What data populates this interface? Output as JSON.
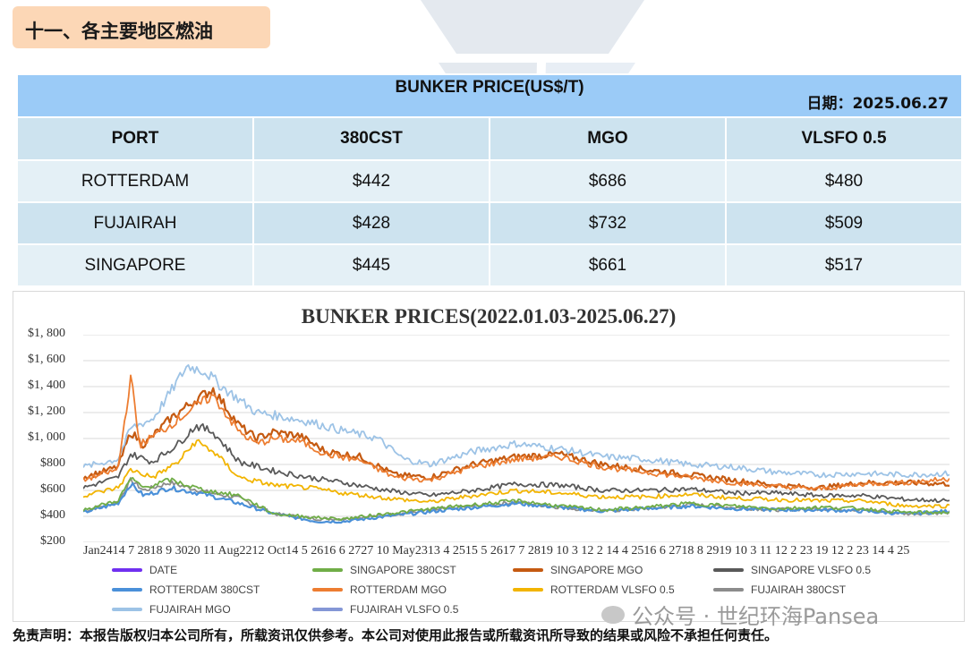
{
  "section": {
    "title": "十一、各主要地区燃油"
  },
  "table": {
    "caption": "BUNKER PRICE(US$/T)",
    "date_label": "日期：2025.06.27",
    "headers": [
      "PORT",
      "380CST",
      "MGO",
      "VLSFO 0.5"
    ],
    "rows": [
      [
        "ROTTERDAM",
        "$442",
        "$686",
        "$480"
      ],
      [
        "FUJAIRAH",
        "$428",
        "$732",
        "$509"
      ],
      [
        "SINGAPORE",
        "$445",
        "$661",
        "$517"
      ]
    ]
  },
  "watermark_text": "pansea",
  "chart_data": {
    "type": "line",
    "title": "BUNKER PRICES(2022.01.03-2025.06.27)",
    "ylim": [
      200,
      1800
    ],
    "yticks": [
      "$1, 800",
      "$1, 600",
      "$1, 400",
      "$1, 200",
      "$1, 000",
      "$800",
      "$600",
      "$400",
      "$200"
    ],
    "ytick_values": [
      1800,
      1600,
      1400,
      1200,
      1000,
      800,
      600,
      400,
      200
    ],
    "xtick_text": "Jan2414 7 2818 9 3020 11 Aug2212 Oct14 5 2616 6 2727 10 May2313 4 2515 5 2617 7 2819 10 3 12 2 14 4 2516 6 2718 8 2919 10 3 11 12 2 23 19 12 2 23 14 4 25",
    "x_range": [
      "2022.01.03",
      "2025.06.27"
    ],
    "grid": true,
    "legend_position": "bottom",
    "series": [
      {
        "name": "DATE",
        "color": "#7030f0",
        "anchors": []
      },
      {
        "name": "SINGAPORE 380CST",
        "color": "#70ad47",
        "anchors": [
          [
            0,
            450
          ],
          [
            0.04,
            520
          ],
          [
            0.055,
            690
          ],
          [
            0.07,
            620
          ],
          [
            0.1,
            680
          ],
          [
            0.14,
            600
          ],
          [
            0.18,
            560
          ],
          [
            0.22,
            420
          ],
          [
            0.27,
            390
          ],
          [
            0.3,
            380
          ],
          [
            0.35,
            420
          ],
          [
            0.42,
            470
          ],
          [
            0.5,
            520
          ],
          [
            0.55,
            480
          ],
          [
            0.6,
            450
          ],
          [
            0.65,
            470
          ],
          [
            0.7,
            500
          ],
          [
            0.75,
            480
          ],
          [
            0.8,
            460
          ],
          [
            0.85,
            470
          ],
          [
            0.9,
            460
          ],
          [
            0.95,
            430
          ],
          [
            1,
            430
          ]
        ]
      },
      {
        "name": "SINGAPORE MGO",
        "color": "#c55a11",
        "anchors": [
          [
            0,
            700
          ],
          [
            0.04,
            780
          ],
          [
            0.055,
            1050
          ],
          [
            0.07,
            950
          ],
          [
            0.1,
            1150
          ],
          [
            0.13,
            1300
          ],
          [
            0.15,
            1380
          ],
          [
            0.18,
            1100
          ],
          [
            0.2,
            1000
          ],
          [
            0.22,
            1050
          ],
          [
            0.25,
            1020
          ],
          [
            0.28,
            900
          ],
          [
            0.32,
            860
          ],
          [
            0.36,
            720
          ],
          [
            0.4,
            700
          ],
          [
            0.45,
            800
          ],
          [
            0.5,
            860
          ],
          [
            0.55,
            880
          ],
          [
            0.6,
            800
          ],
          [
            0.65,
            760
          ],
          [
            0.7,
            720
          ],
          [
            0.75,
            680
          ],
          [
            0.8,
            640
          ],
          [
            0.85,
            620
          ],
          [
            0.9,
            660
          ],
          [
            0.95,
            660
          ],
          [
            1,
            650
          ]
        ]
      },
      {
        "name": "SINGAPORE VLSFO 0.5",
        "color": "#595959",
        "anchors": [
          [
            0,
            620
          ],
          [
            0.04,
            700
          ],
          [
            0.055,
            880
          ],
          [
            0.08,
            820
          ],
          [
            0.11,
            960
          ],
          [
            0.13,
            1100
          ],
          [
            0.15,
            1050
          ],
          [
            0.18,
            820
          ],
          [
            0.22,
            750
          ],
          [
            0.26,
            700
          ],
          [
            0.3,
            660
          ],
          [
            0.35,
            600
          ],
          [
            0.4,
            560
          ],
          [
            0.45,
            600
          ],
          [
            0.5,
            650
          ],
          [
            0.55,
            640
          ],
          [
            0.6,
            600
          ],
          [
            0.65,
            600
          ],
          [
            0.7,
            610
          ],
          [
            0.75,
            580
          ],
          [
            0.8,
            580
          ],
          [
            0.85,
            560
          ],
          [
            0.9,
            560
          ],
          [
            0.95,
            530
          ],
          [
            1,
            520
          ]
        ]
      },
      {
        "name": "ROTTERDAM 380CST",
        "color": "#4a90d9",
        "anchors": [
          [
            0,
            430
          ],
          [
            0.04,
            500
          ],
          [
            0.055,
            650
          ],
          [
            0.07,
            560
          ],
          [
            0.1,
            620
          ],
          [
            0.14,
            570
          ],
          [
            0.18,
            500
          ],
          [
            0.22,
            420
          ],
          [
            0.27,
            360
          ],
          [
            0.3,
            360
          ],
          [
            0.35,
            400
          ],
          [
            0.42,
            450
          ],
          [
            0.5,
            500
          ],
          [
            0.55,
            470
          ],
          [
            0.6,
            440
          ],
          [
            0.65,
            460
          ],
          [
            0.7,
            480
          ],
          [
            0.75,
            460
          ],
          [
            0.8,
            450
          ],
          [
            0.85,
            450
          ],
          [
            0.9,
            440
          ],
          [
            0.95,
            420
          ],
          [
            1,
            440
          ]
        ]
      },
      {
        "name": "ROTTERDAM MGO",
        "color": "#ed7d31",
        "anchors": [
          [
            0,
            680
          ],
          [
            0.04,
            760
          ],
          [
            0.055,
            1480
          ],
          [
            0.065,
            950
          ],
          [
            0.1,
            1100
          ],
          [
            0.13,
            1250
          ],
          [
            0.15,
            1330
          ],
          [
            0.18,
            1050
          ],
          [
            0.2,
            960
          ],
          [
            0.22,
            1000
          ],
          [
            0.25,
            980
          ],
          [
            0.28,
            880
          ],
          [
            0.32,
            830
          ],
          [
            0.36,
            700
          ],
          [
            0.4,
            680
          ],
          [
            0.45,
            780
          ],
          [
            0.5,
            840
          ],
          [
            0.55,
            860
          ],
          [
            0.6,
            780
          ],
          [
            0.65,
            740
          ],
          [
            0.7,
            700
          ],
          [
            0.75,
            660
          ],
          [
            0.8,
            630
          ],
          [
            0.85,
            610
          ],
          [
            0.9,
            650
          ],
          [
            0.95,
            660
          ],
          [
            1,
            690
          ]
        ]
      },
      {
        "name": "ROTTERDAM VLSFO 0.5",
        "color": "#f2b400",
        "anchors": [
          [
            0,
            560
          ],
          [
            0.04,
            620
          ],
          [
            0.055,
            760
          ],
          [
            0.08,
            700
          ],
          [
            0.11,
            820
          ],
          [
            0.13,
            980
          ],
          [
            0.15,
            900
          ],
          [
            0.18,
            700
          ],
          [
            0.22,
            640
          ],
          [
            0.26,
            620
          ],
          [
            0.3,
            580
          ],
          [
            0.35,
            540
          ],
          [
            0.4,
            510
          ],
          [
            0.45,
            560
          ],
          [
            0.5,
            600
          ],
          [
            0.55,
            580
          ],
          [
            0.6,
            550
          ],
          [
            0.65,
            550
          ],
          [
            0.7,
            570
          ],
          [
            0.75,
            540
          ],
          [
            0.8,
            530
          ],
          [
            0.85,
            520
          ],
          [
            0.9,
            520
          ],
          [
            0.95,
            480
          ],
          [
            1,
            480
          ]
        ]
      },
      {
        "name": "FUJAIRAH  380CST",
        "color": "#8c8c8c",
        "anchors": [
          [
            0,
            440
          ],
          [
            0.04,
            510
          ],
          [
            0.055,
            680
          ],
          [
            0.07,
            600
          ],
          [
            0.1,
            660
          ],
          [
            0.14,
            590
          ],
          [
            0.18,
            540
          ],
          [
            0.22,
            420
          ],
          [
            0.27,
            380
          ],
          [
            0.3,
            380
          ],
          [
            0.35,
            410
          ],
          [
            0.42,
            460
          ],
          [
            0.5,
            510
          ],
          [
            0.55,
            470
          ],
          [
            0.6,
            440
          ],
          [
            0.65,
            460
          ],
          [
            0.7,
            490
          ],
          [
            0.75,
            470
          ],
          [
            0.8,
            450
          ],
          [
            0.85,
            460
          ],
          [
            0.9,
            450
          ],
          [
            0.95,
            420
          ],
          [
            1,
            430
          ]
        ]
      },
      {
        "name": "FUJAIRAH MGO",
        "color": "#9dc3e6",
        "anchors": [
          [
            0,
            780
          ],
          [
            0.04,
            840
          ],
          [
            0.055,
            1080
          ],
          [
            0.08,
            1150
          ],
          [
            0.1,
            1350
          ],
          [
            0.12,
            1560
          ],
          [
            0.14,
            1520
          ],
          [
            0.16,
            1400
          ],
          [
            0.18,
            1300
          ],
          [
            0.2,
            1200
          ],
          [
            0.22,
            1180
          ],
          [
            0.26,
            1130
          ],
          [
            0.3,
            1060
          ],
          [
            0.34,
            1000
          ],
          [
            0.37,
            840
          ],
          [
            0.4,
            800
          ],
          [
            0.45,
            900
          ],
          [
            0.5,
            960
          ],
          [
            0.55,
            920
          ],
          [
            0.6,
            860
          ],
          [
            0.65,
            840
          ],
          [
            0.7,
            800
          ],
          [
            0.75,
            780
          ],
          [
            0.8,
            740
          ],
          [
            0.85,
            720
          ],
          [
            0.9,
            730
          ],
          [
            0.95,
            720
          ],
          [
            1,
            730
          ]
        ]
      },
      {
        "name": "FUJAIRAH VLSFO 0.5",
        "color": "#8497d6",
        "anchors": [
          [
            0,
            640
          ],
          [
            0.04,
            710
          ],
          [
            0.055,
            900
          ],
          [
            0.08,
            840
          ],
          [
            0.11,
            980
          ],
          [
            0.13,
            1120
          ],
          [
            0.15,
            1070
          ],
          [
            0.18,
            840
          ],
          [
            0.22,
            760
          ],
          [
            0.26,
            710
          ],
          [
            0.3,
            670
          ],
          [
            0.35,
            610
          ],
          [
            0.4,
            570
          ],
          [
            0.45,
            610
          ],
          [
            0.5,
            660
          ],
          [
            0.55,
            650
          ],
          [
            0.6,
            610
          ],
          [
            0.65,
            610
          ],
          [
            0.7,
            620
          ],
          [
            0.75,
            590
          ],
          [
            0.8,
            590
          ],
          [
            0.85,
            570
          ],
          [
            0.9,
            570
          ],
          [
            0.95,
            540
          ],
          [
            1,
            510
          ]
        ]
      }
    ]
  },
  "disclaimer": "免责声明：本报告版权归本公司所有，所载资讯仅供参考。本公司对使用此报告或所载资讯所导致的结果或风险不承担任何责任。",
  "footer_mark": "公众号 · 世纪环海Pansea"
}
